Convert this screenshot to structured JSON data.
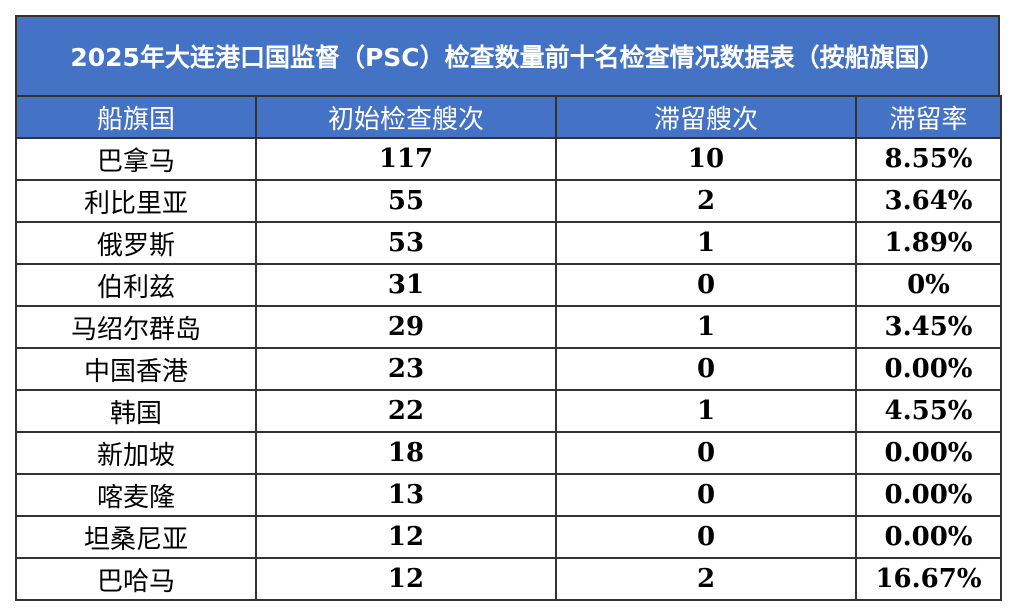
{
  "title": "2025年大连港口国监督（PSC）检查数量前十名检查情况数据表（按船旗国）",
  "table": {
    "headers": [
      "船旗国",
      "初始检查艘次",
      "滞留艘次",
      "滞留率"
    ],
    "rows": [
      [
        "巴拿马",
        "117",
        "10",
        "8.55%"
      ],
      [
        "利比里亚",
        "55",
        "2",
        "3.64%"
      ],
      [
        "俄罗斯",
        "53",
        "1",
        "1.89%"
      ],
      [
        "伯利兹",
        "31",
        "0",
        "0%"
      ],
      [
        "马绍尔群岛",
        "29",
        "1",
        "3.45%"
      ],
      [
        "中国香港",
        "23",
        "0",
        "0.00%"
      ],
      [
        "韩国",
        "22",
        "1",
        "4.55%"
      ],
      [
        "新加坡",
        "18",
        "0",
        "0.00%"
      ],
      [
        "喀麦隆",
        "13",
        "0",
        "0.00%"
      ],
      [
        "坦桑尼亚",
        "12",
        "0",
        "0.00%"
      ],
      [
        "巴哈马",
        "12",
        "2",
        "16.67%"
      ]
    ]
  }
}
